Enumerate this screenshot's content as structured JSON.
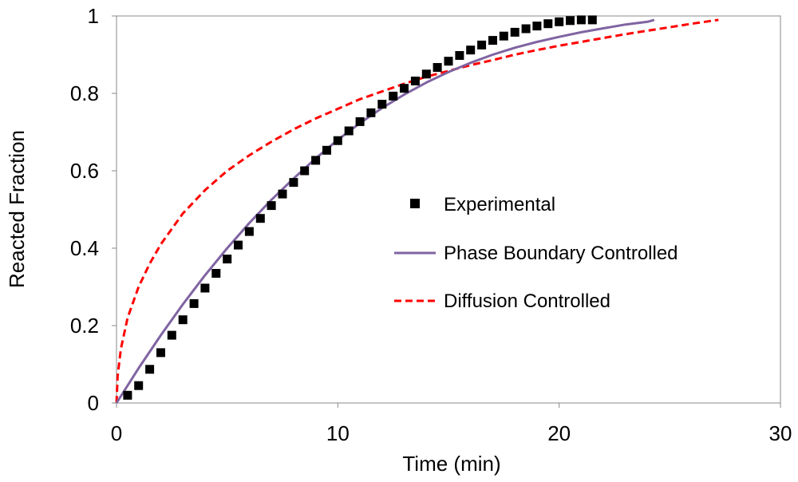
{
  "chart_data": {
    "type": "scatter",
    "title": "",
    "xlabel": "Time (min)",
    "ylabel": "Reacted Fraction",
    "xlim": [
      0,
      30
    ],
    "ylim": [
      0,
      1
    ],
    "xticks": [
      "0",
      "10",
      "20",
      "30"
    ],
    "yticks": [
      "0",
      "0.2",
      "0.4",
      "0.6",
      "0.8",
      "1"
    ],
    "grid": false,
    "legend_position": "center-right",
    "series": [
      {
        "name": "Experimental",
        "kind": "markers",
        "marker": "square",
        "color": "#000000",
        "x": [
          0.5,
          1,
          1.5,
          2,
          2.5,
          3,
          3.5,
          4,
          4.5,
          5,
          5.5,
          6,
          6.5,
          7,
          7.5,
          8,
          8.5,
          9,
          9.5,
          10,
          10.5,
          11,
          11.5,
          12,
          12.5,
          13,
          13.5,
          14,
          14.5,
          15,
          15.5,
          16,
          16.5,
          17,
          17.5,
          18,
          18.5,
          19,
          19.5,
          20,
          20.5,
          21,
          21.5
        ],
        "y": [
          0.02,
          0.045,
          0.087,
          0.13,
          0.175,
          0.215,
          0.257,
          0.297,
          0.335,
          0.372,
          0.408,
          0.443,
          0.477,
          0.51,
          0.54,
          0.57,
          0.6,
          0.627,
          0.653,
          0.678,
          0.703,
          0.727,
          0.75,
          0.772,
          0.793,
          0.813,
          0.832,
          0.85,
          0.867,
          0.883,
          0.898,
          0.912,
          0.925,
          0.937,
          0.948,
          0.958,
          0.967,
          0.974,
          0.98,
          0.985,
          0.988,
          0.99,
          0.99
        ]
      },
      {
        "name": "Phase Boundary Controlled",
        "kind": "line",
        "style": "solid",
        "color": "#8064a2",
        "x": [
          0,
          1,
          2,
          3,
          4,
          5,
          6,
          7,
          8,
          9,
          10,
          11,
          12,
          13,
          14,
          15,
          16,
          17,
          18,
          19,
          20,
          21,
          22,
          23,
          24,
          24.3
        ],
        "y": [
          0,
          0.09,
          0.175,
          0.255,
          0.33,
          0.4,
          0.465,
          0.525,
          0.58,
          0.632,
          0.68,
          0.723,
          0.762,
          0.797,
          0.828,
          0.855,
          0.879,
          0.9,
          0.918,
          0.933,
          0.946,
          0.958,
          0.968,
          0.978,
          0.985,
          0.99
        ]
      },
      {
        "name": "Diffusion Controlled",
        "kind": "line",
        "style": "dashed",
        "color": "#ff0000",
        "x": [
          0,
          0.05,
          0.2,
          0.5,
          1,
          1.5,
          2,
          3,
          4,
          5,
          6,
          7,
          8,
          9,
          10,
          11,
          12,
          13,
          14,
          15,
          16,
          17,
          18,
          19,
          20,
          21,
          22,
          23,
          24,
          25,
          26,
          27.2
        ],
        "y": [
          0,
          0.07,
          0.14,
          0.22,
          0.3,
          0.36,
          0.41,
          0.49,
          0.55,
          0.6,
          0.64,
          0.675,
          0.707,
          0.735,
          0.76,
          0.785,
          0.805,
          0.825,
          0.843,
          0.858,
          0.873,
          0.886,
          0.9,
          0.912,
          0.923,
          0.933,
          0.943,
          0.953,
          0.962,
          0.971,
          0.98,
          0.99
        ]
      }
    ]
  }
}
